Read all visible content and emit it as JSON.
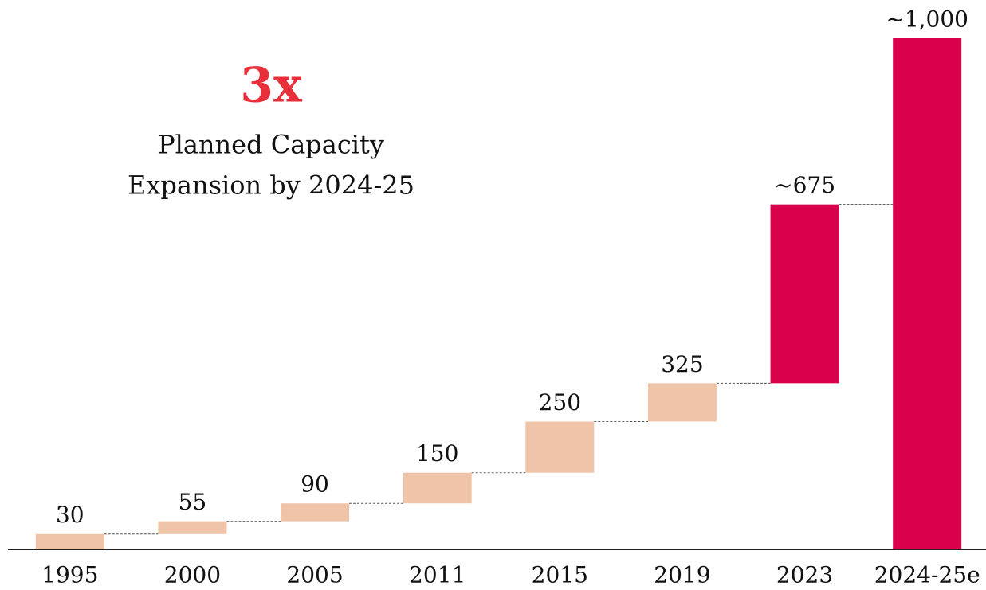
{
  "chart_data": {
    "type": "waterfall",
    "categories": [
      "1995",
      "2000",
      "2005",
      "2011",
      "2015",
      "2019",
      "2023",
      "2024-25e"
    ],
    "values": [
      30,
      55,
      90,
      150,
      250,
      325,
      675,
      1000
    ],
    "value_labels": [
      "30",
      "55",
      "90",
      "150",
      "250",
      "325",
      "~675",
      "~1,000"
    ],
    "colors": [
      "#f0c4a8",
      "#f0c4a8",
      "#f0c4a8",
      "#f0c4a8",
      "#f0c4a8",
      "#f0c4a8",
      "#d9004c",
      "#d9004c"
    ],
    "annotation": {
      "headline": "3x",
      "lines": [
        "Planned Capacity",
        "Expansion by 2024-25"
      ],
      "headline_color": "#e8303a"
    }
  }
}
